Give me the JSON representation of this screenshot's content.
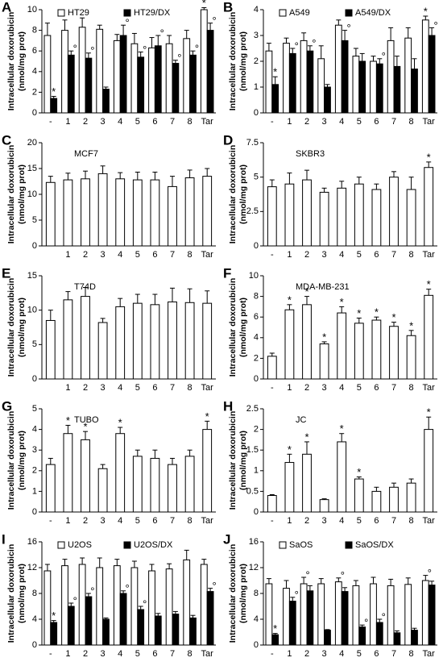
{
  "chart_data": [
    {
      "type": "bar",
      "panel": "A",
      "y_label": "Intracellular doxorubicin",
      "y_unit": "(nmol/mg prot)",
      "categories": [
        "-",
        "1",
        "2",
        "3",
        "4",
        "5",
        "6",
        "7",
        "8",
        "Tar"
      ],
      "ylim": [
        0,
        10
      ],
      "yticks": [
        0,
        2,
        4,
        6,
        8,
        10
      ],
      "series": [
        {
          "name": "HT29",
          "color": "#ffffff",
          "values": [
            7.5,
            8,
            8.3,
            8.1,
            7,
            6.7,
            6.3,
            6.7,
            7.2,
            10
          ],
          "errors": [
            1.2,
            1,
            0.9,
            0.4,
            0.6,
            1,
            1,
            0.8,
            0.8,
            0.2
          ],
          "markers": [
            null,
            null,
            null,
            null,
            null,
            null,
            null,
            null,
            null,
            "*"
          ]
        },
        {
          "name": "HT29/DX",
          "color": "#000000",
          "values": [
            1.4,
            5.6,
            5.3,
            2.3,
            7.5,
            5.4,
            6.5,
            4.8,
            5.6,
            8
          ],
          "errors": [
            0.2,
            0.4,
            0.5,
            0.2,
            1,
            0.5,
            1,
            0.3,
            0.4,
            0.7
          ],
          "markers": [
            "*",
            "°",
            "°",
            null,
            "°",
            "°",
            "°",
            "°",
            "°",
            "°"
          ]
        }
      ]
    },
    {
      "type": "bar",
      "panel": "B",
      "y_label": "Intracellular doxorubicin",
      "y_unit": "(nmol/mg prot)",
      "categories": [
        "-",
        "1",
        "2",
        "3",
        "4",
        "5",
        "6",
        "7",
        "8",
        "Tar"
      ],
      "ylim": [
        0,
        4
      ],
      "yticks": [
        0,
        1,
        2,
        3,
        4
      ],
      "series": [
        {
          "name": "A549",
          "color": "#ffffff",
          "values": [
            2.4,
            2.7,
            2.8,
            2.1,
            3.4,
            2.2,
            2,
            2.8,
            2.9,
            3.6
          ],
          "errors": [
            0.3,
            0.2,
            0.3,
            0.5,
            0.2,
            0.3,
            0.2,
            0.5,
            0.4,
            0.15
          ],
          "markers": [
            null,
            null,
            null,
            null,
            null,
            null,
            null,
            null,
            null,
            "*"
          ]
        },
        {
          "name": "A549/DX",
          "color": "#000000",
          "values": [
            1.1,
            2.3,
            2.4,
            1,
            2.8,
            2,
            1.9,
            1.8,
            1.7,
            3
          ],
          "errors": [
            0.3,
            0.2,
            0.2,
            0.1,
            0.4,
            0.3,
            0.2,
            0.4,
            0.4,
            0.3
          ],
          "markers": [
            "*",
            "°",
            "°",
            null,
            "°",
            null,
            "°",
            null,
            null,
            "°"
          ]
        }
      ]
    },
    {
      "type": "bar",
      "panel": "C",
      "title": "MCF7",
      "y_label": "Intracellular doxorubicin",
      "y_unit": "(nmol/mg prot)",
      "categories": [
        null,
        "1",
        "2",
        "3",
        "4",
        "5",
        "6",
        "7",
        "8",
        "Tar"
      ],
      "ylim": [
        0,
        20
      ],
      "yticks": [
        0,
        5,
        10,
        15,
        20
      ],
      "series": [
        {
          "color": "#ffffff",
          "values": [
            12.3,
            12.8,
            13,
            14,
            13,
            12.8,
            12.8,
            11.5,
            13.2,
            13.5
          ],
          "errors": [
            1.2,
            1.3,
            1.5,
            1.5,
            1.2,
            1.5,
            1.5,
            2,
            1.5,
            1.5
          ]
        }
      ]
    },
    {
      "type": "bar",
      "panel": "D",
      "title": "SKBR3",
      "y_label": "Intracellular doxorubicin",
      "y_unit": "(nmol/mg prot)",
      "categories": [
        "-",
        "1",
        "2",
        "3",
        "4",
        "5",
        "6",
        "7",
        "8",
        "Tar"
      ],
      "ylim": [
        0,
        7.5
      ],
      "yticks": [
        0,
        2.5,
        5,
        7.5
      ],
      "series": [
        {
          "color": "#ffffff",
          "values": [
            4.3,
            4.5,
            4.8,
            3.9,
            4.2,
            4.5,
            4.1,
            5,
            4.1,
            5.7
          ],
          "errors": [
            0.5,
            0.8,
            0.7,
            0.3,
            0.5,
            0.5,
            0.4,
            0.4,
            0.9,
            0.4
          ],
          "markers": [
            null,
            null,
            null,
            null,
            null,
            null,
            null,
            null,
            null,
            "*"
          ]
        }
      ]
    },
    {
      "type": "bar",
      "panel": "E",
      "title": "T74D",
      "y_label": "Intracellular doxorubicin",
      "y_unit": "(nmol/mg prot)",
      "categories": [
        null,
        "1",
        "2",
        "3",
        "4",
        "5",
        "6",
        "7",
        "8",
        "Tar"
      ],
      "ylim": [
        0,
        15
      ],
      "yticks": [
        0,
        5,
        10,
        15
      ],
      "series": [
        {
          "color": "#ffffff",
          "values": [
            8.5,
            11.5,
            12,
            8.2,
            10.5,
            11,
            10.8,
            11.2,
            11.1,
            11
          ],
          "errors": [
            1.5,
            1.2,
            1.3,
            0.6,
            1.2,
            1.3,
            1.5,
            2,
            2,
            1.8
          ]
        }
      ]
    },
    {
      "type": "bar",
      "panel": "F",
      "title": "MDA-MB-231",
      "y_label": "Intracellular doxorubicin",
      "y_unit": "(nmol/mg prot)",
      "categories": [
        "-",
        "1",
        "2",
        "3",
        "4",
        "5",
        "6",
        "7",
        "8",
        "Tar"
      ],
      "ylim": [
        0,
        10
      ],
      "yticks": [
        0,
        2,
        4,
        6,
        8,
        10
      ],
      "series": [
        {
          "color": "#ffffff",
          "values": [
            2.2,
            6.7,
            7.2,
            3.4,
            6.4,
            5.4,
            5.7,
            5.1,
            4.2,
            8.1
          ],
          "errors": [
            0.3,
            0.5,
            0.8,
            0.2,
            0.6,
            0.5,
            0.3,
            0.4,
            0.5,
            0.6
          ],
          "markers": [
            null,
            "*",
            "*",
            "*",
            "*",
            "*",
            "*",
            "*",
            "*",
            "*"
          ]
        }
      ]
    },
    {
      "type": "bar",
      "panel": "G",
      "title": "TUBO",
      "y_label": "Intracellular doxorubicin",
      "y_unit": "(nmol/mg prot)",
      "categories": [
        "-",
        "1",
        "2",
        "3",
        "4",
        "5",
        "6",
        "7",
        "8",
        "Tar"
      ],
      "ylim": [
        0,
        5
      ],
      "yticks": [
        0,
        1,
        2,
        3,
        4,
        5
      ],
      "series": [
        {
          "color": "#ffffff",
          "values": [
            2.3,
            3.8,
            3.5,
            2.1,
            3.8,
            2.7,
            2.6,
            2.3,
            2.7,
            4
          ],
          "errors": [
            0.3,
            0.4,
            0.4,
            0.2,
            0.3,
            0.3,
            0.4,
            0.3,
            0.3,
            0.4
          ],
          "markers": [
            null,
            "*",
            "*",
            null,
            "*",
            null,
            null,
            null,
            null,
            "*"
          ]
        }
      ]
    },
    {
      "type": "bar",
      "panel": "H",
      "title": "JC",
      "y_label": "Intracellular doxorubicin",
      "y_unit": "(nmol/mg prot)",
      "categories": [
        "-",
        "1",
        "2",
        "3",
        "4",
        "5",
        "6",
        "7",
        "8",
        "Tar"
      ],
      "ylim": [
        0,
        2.5
      ],
      "yticks": [
        0,
        0.5,
        1,
        1.5,
        2,
        2.5
      ],
      "series": [
        {
          "color": "#ffffff",
          "values": [
            0.4,
            1.2,
            1.4,
            0.3,
            1.7,
            0.8,
            0.5,
            0.6,
            0.7,
            2
          ],
          "errors": [
            0.02,
            0.2,
            0.3,
            0.02,
            0.2,
            0.05,
            0.1,
            0.1,
            0.1,
            0.3
          ],
          "markers": [
            null,
            "*",
            "*",
            null,
            "*",
            "*",
            null,
            null,
            null,
            "*"
          ]
        }
      ]
    },
    {
      "type": "bar",
      "panel": "I",
      "y_label": "Intracellular doxorubicin",
      "y_unit": "(nmol/mg prot)",
      "categories": [
        "-",
        "1",
        "2",
        "3",
        "4",
        "5",
        "6",
        "7",
        "8",
        "Tar"
      ],
      "ylim": [
        0,
        16
      ],
      "yticks": [
        0,
        4,
        8,
        12,
        16
      ],
      "series": [
        {
          "name": "U2OS",
          "color": "#ffffff",
          "values": [
            11.5,
            12.3,
            12.5,
            12,
            12.3,
            12,
            11.5,
            11.8,
            13.2,
            12.5
          ],
          "errors": [
            1,
            1,
            1,
            1.5,
            1,
            1,
            1,
            0.8,
            1.5,
            0.8
          ]
        },
        {
          "name": "U2OS/DX",
          "color": "#000000",
          "values": [
            3.5,
            6,
            7.5,
            4,
            8,
            5.5,
            4.5,
            4.8,
            4.2,
            8.3
          ],
          "errors": [
            0.3,
            0.5,
            0.5,
            0.2,
            0.4,
            0.5,
            0.4,
            0.4,
            0.4,
            0.5
          ],
          "markers": [
            "*",
            "°",
            "°",
            null,
            "°",
            "°",
            null,
            null,
            null,
            "°"
          ]
        }
      ]
    },
    {
      "type": "bar",
      "panel": "J",
      "y_label": "Intracellular doxorubicin",
      "y_unit": "(nmol/mg prot)",
      "categories": [
        "-",
        "1",
        "2",
        "3",
        "4",
        "5",
        "6",
        "7",
        "8",
        "Tar"
      ],
      "ylim": [
        0,
        16
      ],
      "yticks": [
        0,
        4,
        8,
        12,
        16
      ],
      "series": [
        {
          "name": "SaOS",
          "color": "#ffffff",
          "values": [
            9.5,
            8.8,
            9.5,
            9.5,
            9.8,
            9.2,
            9.5,
            9.2,
            9.4,
            10
          ],
          "errors": [
            0.8,
            1.2,
            1,
            0.8,
            0.6,
            0.8,
            1,
            1,
            1,
            0.8
          ],
          "markers": [
            null,
            null,
            "°",
            null,
            "°",
            null,
            null,
            null,
            null,
            "°"
          ]
        },
        {
          "name": "SaOS/DX",
          "color": "#000000",
          "values": [
            1.6,
            6.8,
            8.4,
            2.3,
            8.3,
            2.8,
            3.5,
            1.9,
            2.3,
            9.3
          ],
          "errors": [
            0.2,
            0.6,
            0.8,
            0.1,
            0.6,
            0.3,
            0.5,
            0.3,
            0.3,
            0.6
          ],
          "markers": [
            "*",
            "°",
            null,
            null,
            null,
            "°",
            "°",
            null,
            null,
            null
          ]
        }
      ]
    }
  ]
}
